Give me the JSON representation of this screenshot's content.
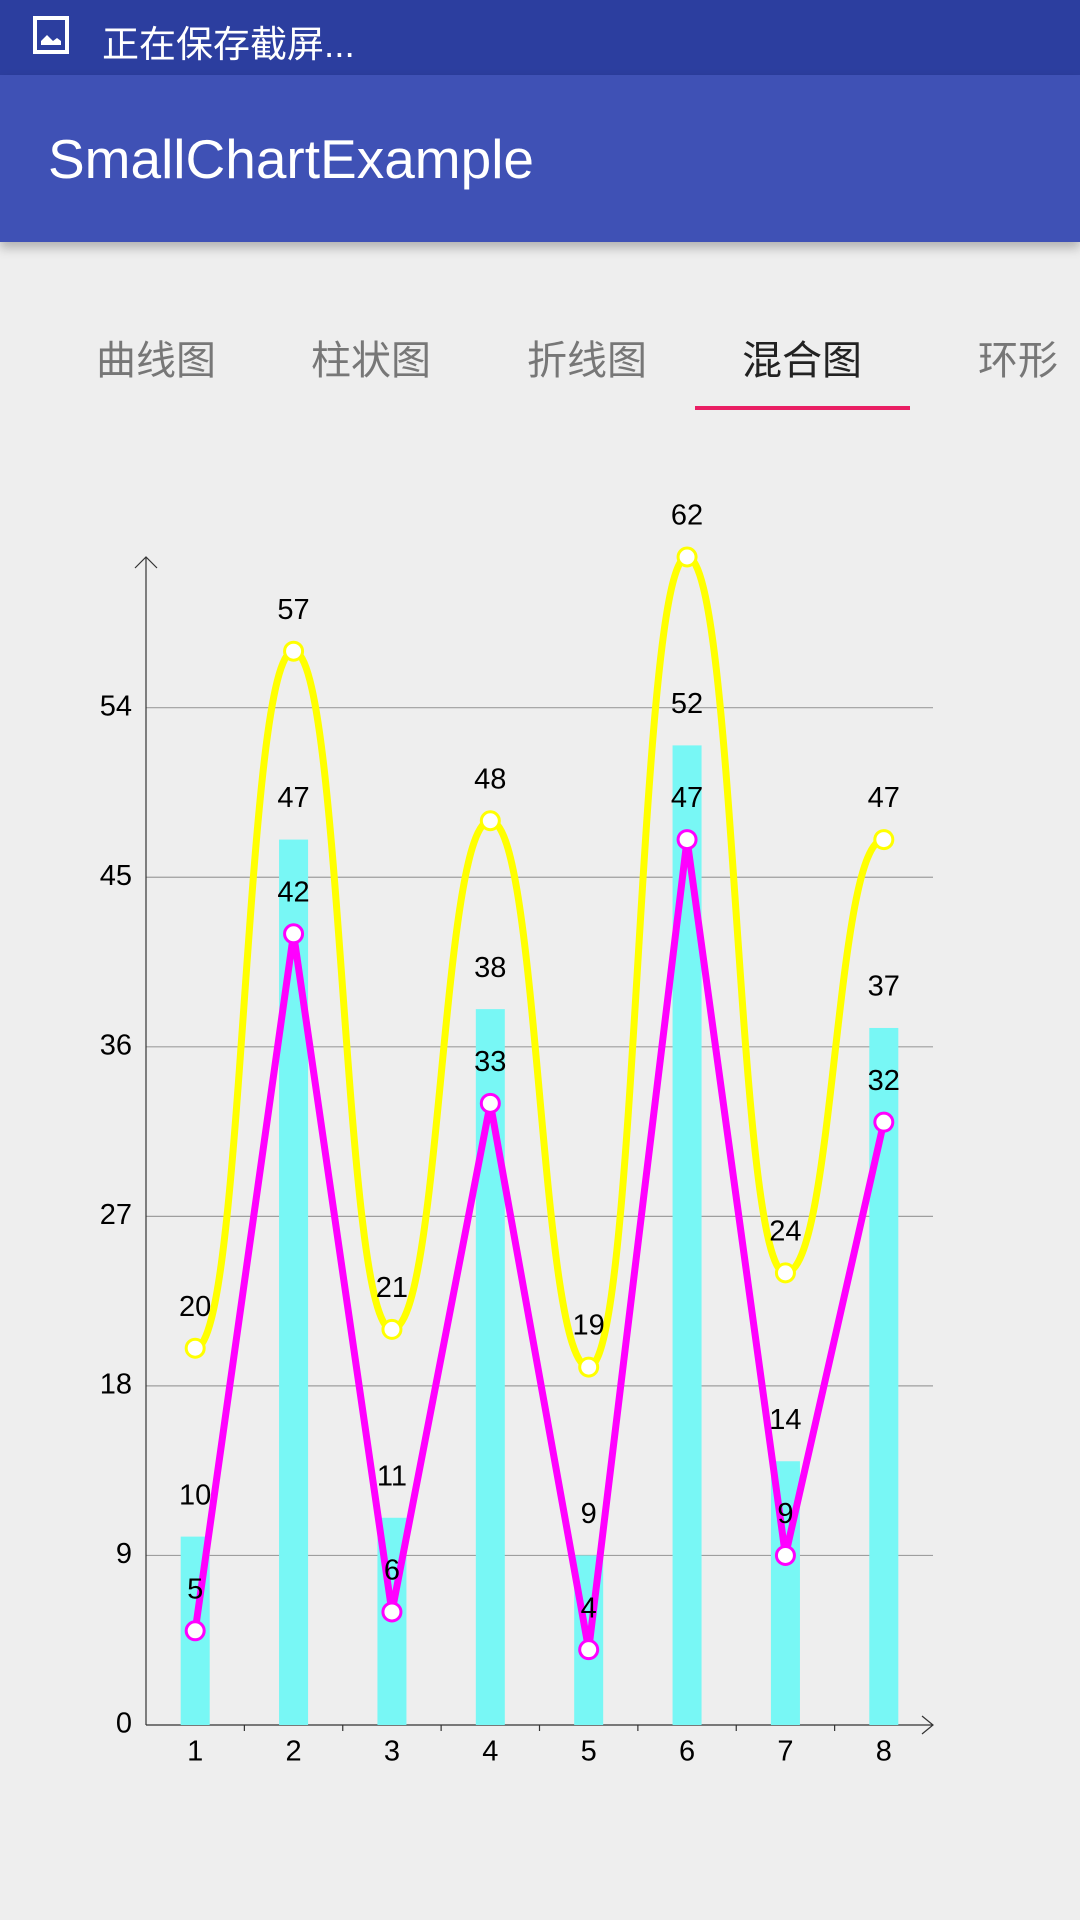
{
  "status_bar": {
    "text": "正在保存截屏..."
  },
  "app_bar": {
    "title": "SmallChartExample"
  },
  "tabs": {
    "items": [
      "曲线图",
      "柱状图",
      "折线图",
      "混合图",
      "环形"
    ],
    "selected": 3
  },
  "chart_data": {
    "type": "combo",
    "categories": [
      "1",
      "2",
      "3",
      "4",
      "5",
      "6",
      "7",
      "8"
    ],
    "series": [
      {
        "type": "bar",
        "color": "#78f7f5",
        "values": [
          10,
          47,
          11,
          38,
          9,
          52,
          14,
          37
        ]
      },
      {
        "type": "curve",
        "color": "#ffff00",
        "values": [
          20,
          57,
          21,
          48,
          19,
          62,
          24,
          47
        ]
      },
      {
        "type": "line",
        "color": "#ff00ff",
        "values": [
          5,
          42,
          6,
          33,
          4,
          47,
          9,
          32
        ]
      }
    ],
    "ylim": [
      0,
      62
    ],
    "yticks": [
      0,
      9,
      18,
      27,
      36,
      45,
      54
    ],
    "grid": true
  }
}
